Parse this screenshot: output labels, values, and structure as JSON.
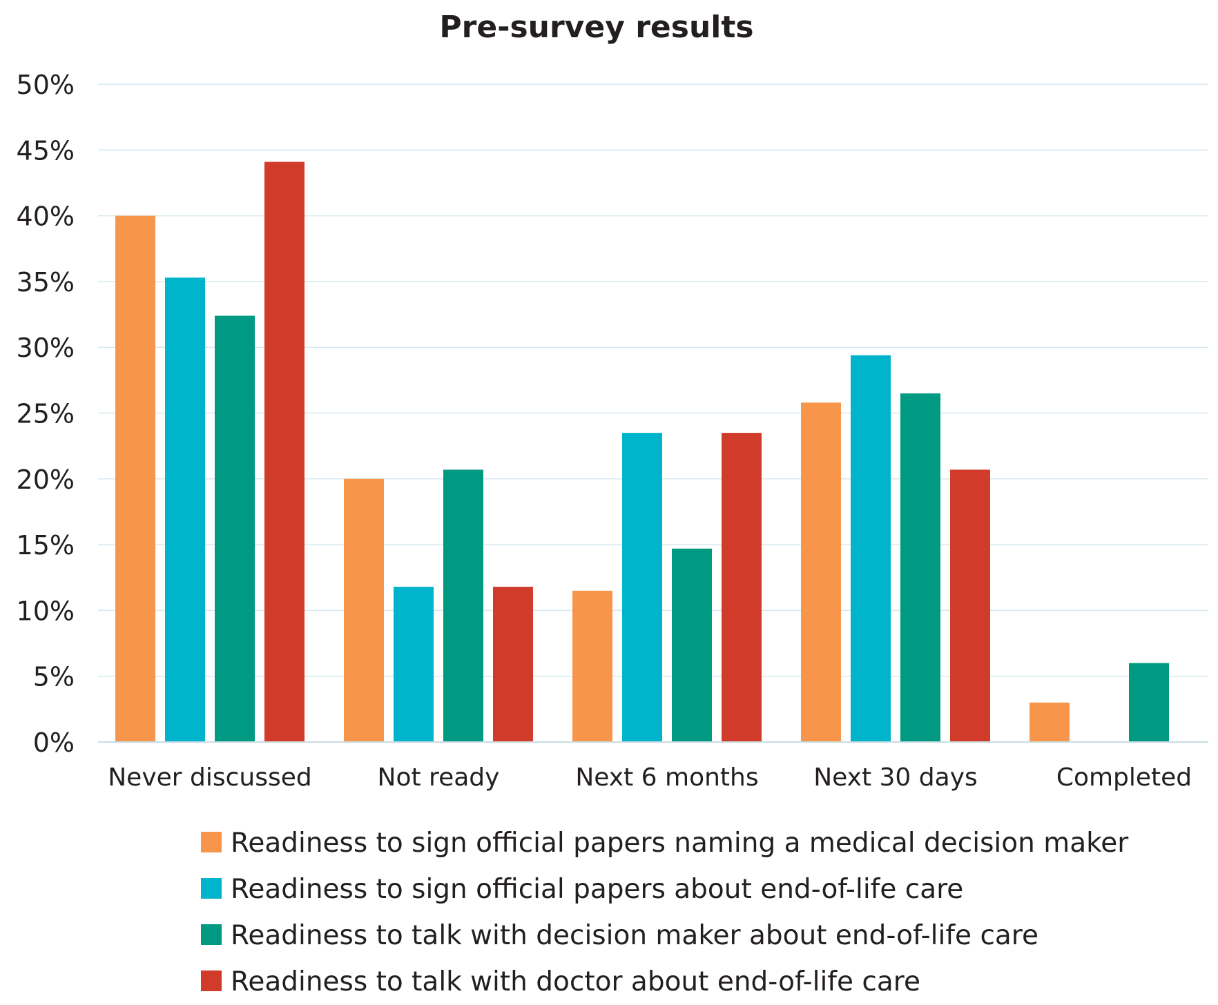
{
  "chart_data": {
    "type": "bar",
    "title": "Pre-survey results",
    "xlabel": "",
    "ylabel": "",
    "ylim": [
      0,
      50
    ],
    "y_ticks": [
      "0%",
      "5%",
      "10%",
      "15%",
      "20%",
      "25%",
      "30%",
      "35%",
      "40%",
      "45%",
      "50%"
    ],
    "y_tick_values": [
      0,
      5,
      10,
      15,
      20,
      25,
      30,
      35,
      40,
      45,
      50
    ],
    "grid": true,
    "legend_position": "bottom",
    "categories": [
      "Never discussed",
      "Not ready",
      "Next 6 months",
      "Next 30 days",
      "Completed"
    ],
    "series": [
      {
        "name": "Readiness to sign official papers naming a medical decision maker",
        "color": "#f7964a",
        "values": [
          40,
          20,
          11.5,
          25.8,
          3
        ]
      },
      {
        "name": "Readiness to sign official papers about end-of-life care",
        "color": "#00b4cc",
        "values": [
          35.3,
          11.8,
          23.5,
          29.4,
          0
        ]
      },
      {
        "name": "Readiness to talk with decision maker about end-of-life care",
        "color": "#009a82",
        "values": [
          32.4,
          20.7,
          14.7,
          26.5,
          6
        ]
      },
      {
        "name": "Readiness to talk with doctor about end-of-life care",
        "color": "#d13b2a",
        "values": [
          44.1,
          11.8,
          23.5,
          20.7,
          0
        ]
      }
    ]
  }
}
